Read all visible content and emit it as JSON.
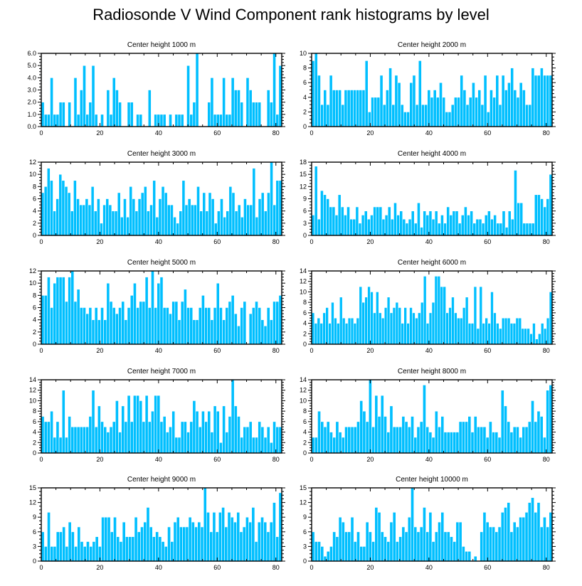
{
  "title": "Radiosonde V Wind Component rank histograms by level",
  "colors": {
    "bar": "#00BFFF",
    "bar_edge": "#ffffff",
    "axis": "#000000"
  },
  "chart_data": [
    {
      "type": "bar",
      "title": "Center height 1000 m",
      "xlim": [
        0,
        82
      ],
      "ylim": [
        0,
        6
      ],
      "xticks": [
        0,
        20,
        40,
        60,
        80
      ],
      "yticks": [
        "0.0",
        "1.0",
        "2.0",
        "3.0",
        "4.0",
        "5.0",
        "6.0"
      ],
      "ytick_values": [
        0,
        1,
        2,
        3,
        4,
        5,
        6
      ],
      "values": [
        2,
        1,
        1,
        4,
        1,
        1,
        2,
        2,
        0,
        2,
        0,
        4,
        1,
        3,
        5,
        1,
        2,
        5,
        1,
        0,
        1,
        0,
        3,
        1,
        4,
        3,
        2,
        0,
        0,
        2,
        2,
        0,
        1,
        1,
        0,
        0,
        3,
        0,
        1,
        1,
        1,
        1,
        0,
        1,
        0,
        1,
        1,
        1,
        0,
        5,
        1,
        2,
        6,
        0,
        0,
        0,
        2,
        4,
        1,
        1,
        1,
        4,
        1,
        1,
        4,
        3,
        3,
        2,
        0,
        4,
        3,
        2,
        2,
        2,
        0,
        0,
        3,
        2,
        6,
        1,
        5
      ]
    },
    {
      "type": "bar",
      "title": "Center height 2000 m",
      "xlim": [
        0,
        82
      ],
      "ylim": [
        0,
        10
      ],
      "xticks": [
        0,
        20,
        40,
        60,
        80
      ],
      "yticks": [
        "0",
        "2",
        "4",
        "6",
        "8",
        "10"
      ],
      "ytick_values": [
        0,
        2,
        4,
        6,
        8,
        10
      ],
      "values": [
        9,
        10,
        7,
        3,
        5,
        3,
        7,
        5,
        5,
        5,
        3,
        5,
        5,
        5,
        5,
        5,
        5,
        5,
        9,
        2,
        4,
        4,
        4,
        7,
        3,
        5,
        8,
        3,
        7,
        6,
        3,
        2,
        2,
        6,
        7,
        3,
        9,
        3,
        3,
        5,
        4,
        5,
        4,
        6,
        4,
        2,
        2,
        3,
        4,
        4,
        7,
        5,
        3,
        4,
        6,
        4,
        5,
        3,
        7,
        2,
        5,
        4,
        7,
        3,
        7,
        5,
        6,
        8,
        5,
        4,
        6,
        5,
        3,
        3,
        8,
        7,
        7,
        8,
        7,
        7,
        7
      ]
    },
    {
      "type": "bar",
      "title": "Center height 3000 m",
      "xlim": [
        0,
        82
      ],
      "ylim": [
        0,
        12
      ],
      "xticks": [
        0,
        20,
        40,
        60,
        80
      ],
      "yticks": [
        "0",
        "2",
        "4",
        "6",
        "8",
        "10",
        "12"
      ],
      "ytick_values": [
        0,
        2,
        4,
        6,
        8,
        10,
        12
      ],
      "values": [
        7,
        8,
        11,
        9,
        4,
        6,
        10,
        9,
        8,
        7,
        4,
        9,
        6,
        5,
        5,
        6,
        5,
        8,
        4,
        6,
        2,
        5,
        6,
        5,
        4,
        4,
        7,
        3,
        6,
        3,
        8,
        6,
        4,
        6,
        7,
        8,
        4,
        5,
        9,
        3,
        6,
        8,
        7,
        5,
        5,
        3,
        2,
        4,
        9,
        5,
        6,
        5,
        5,
        8,
        4,
        7,
        4,
        7,
        6,
        2,
        4,
        6,
        3,
        4,
        8,
        7,
        4,
        5,
        3,
        6,
        5,
        5,
        11,
        3,
        6,
        7,
        4,
        7,
        12,
        5,
        9,
        9
      ]
    },
    {
      "type": "bar",
      "title": "Center height 4000 m",
      "xlim": [
        0,
        82
      ],
      "ylim": [
        0,
        18
      ],
      "xticks": [
        0,
        20,
        40,
        60,
        80
      ],
      "yticks": [
        "0",
        "3",
        "6",
        "9",
        "12",
        "15",
        "18"
      ],
      "ytick_values": [
        0,
        3,
        6,
        9,
        12,
        15,
        18
      ],
      "values": [
        5,
        17,
        4,
        11,
        10,
        9,
        7,
        7,
        5,
        10,
        7,
        5,
        7,
        4,
        4,
        7,
        3,
        5,
        6,
        4,
        5,
        7,
        7,
        7,
        4,
        5,
        7,
        4,
        8,
        5,
        6,
        4,
        3,
        4,
        6,
        3,
        8,
        2,
        6,
        5,
        6,
        4,
        6,
        3,
        5,
        3,
        7,
        5,
        6,
        6,
        3,
        5,
        7,
        5,
        6,
        3,
        4,
        4,
        3,
        5,
        6,
        4,
        5,
        3,
        3,
        6,
        2,
        6,
        4,
        16,
        8,
        8,
        3,
        3,
        3,
        3,
        10,
        10,
        9,
        7,
        9,
        15
      ]
    },
    {
      "type": "bar",
      "title": "Center height 5000 m",
      "xlim": [
        0,
        82
      ],
      "ylim": [
        0,
        12
      ],
      "xticks": [
        0,
        20,
        40,
        60,
        80
      ],
      "yticks": [
        "0",
        "2",
        "4",
        "6",
        "8",
        "10",
        "12"
      ],
      "ytick_values": [
        0,
        2,
        4,
        6,
        8,
        10,
        12
      ],
      "values": [
        8,
        8,
        11,
        6,
        10,
        11,
        11,
        11,
        7,
        11,
        12,
        7,
        9,
        6,
        6,
        5,
        6,
        4,
        6,
        4,
        6,
        4,
        10,
        7,
        6,
        5,
        6,
        7,
        4,
        6,
        8,
        10,
        6,
        7,
        7,
        11,
        6,
        12,
        6,
        10,
        11,
        6,
        6,
        5,
        7,
        7,
        4,
        7,
        9,
        6,
        6,
        4,
        4,
        6,
        8,
        6,
        6,
        4,
        6,
        10,
        6,
        4,
        6,
        7,
        8,
        5,
        3,
        6,
        7,
        0,
        5,
        6,
        7,
        6,
        4,
        3,
        6,
        4,
        7,
        7,
        8
      ]
    },
    {
      "type": "bar",
      "title": "Center height 6000 m",
      "xlim": [
        0,
        82
      ],
      "ylim": [
        0,
        14
      ],
      "xticks": [
        0,
        20,
        40,
        60,
        80
      ],
      "yticks": [
        "0",
        "2",
        "4",
        "6",
        "8",
        "10",
        "12",
        "14"
      ],
      "ytick_values": [
        0,
        2,
        4,
        6,
        8,
        10,
        12,
        14
      ],
      "values": [
        6,
        4,
        5,
        4,
        6,
        7,
        4,
        8,
        5,
        4,
        9,
        5,
        4,
        5,
        5,
        4,
        5,
        11,
        8,
        9,
        11,
        10,
        6,
        10,
        6,
        5,
        7,
        9,
        6,
        7,
        8,
        7,
        4,
        7,
        4,
        7,
        6,
        5,
        6,
        8,
        13,
        4,
        6,
        8,
        13,
        13,
        11,
        11,
        6,
        7,
        9,
        6,
        5,
        5,
        7,
        9,
        4,
        4,
        11,
        3,
        11,
        4,
        5,
        4,
        10,
        6,
        4,
        3,
        5,
        5,
        5,
        4,
        4,
        5,
        5,
        3,
        3,
        3,
        2,
        4,
        1,
        2,
        4,
        3,
        5,
        10
      ]
    },
    {
      "type": "bar",
      "title": "Center height 7000 m",
      "xlim": [
        0,
        82
      ],
      "ylim": [
        0,
        14
      ],
      "xticks": [
        0,
        20,
        40,
        60,
        80
      ],
      "yticks": [
        "0",
        "2",
        "4",
        "6",
        "8",
        "10",
        "12",
        "14"
      ],
      "ytick_values": [
        0,
        2,
        4,
        6,
        8,
        10,
        12,
        14
      ],
      "values": [
        7,
        6,
        6,
        8,
        3,
        6,
        3,
        12,
        3,
        7,
        5,
        5,
        5,
        5,
        5,
        5,
        7,
        12,
        5,
        9,
        6,
        5,
        4,
        5,
        6,
        10,
        4,
        9,
        6,
        11,
        6,
        11,
        11,
        10,
        6,
        11,
        6,
        8,
        11,
        11,
        6,
        7,
        4,
        5,
        8,
        3,
        3,
        6,
        6,
        4,
        6,
        10,
        8,
        5,
        8,
        6,
        8,
        4,
        9,
        8,
        2,
        9,
        4,
        7,
        14,
        9,
        7,
        3,
        5,
        5,
        6,
        3,
        3,
        6,
        5,
        3,
        5,
        2,
        6,
        5,
        5
      ]
    },
    {
      "type": "bar",
      "title": "Center height 8000 m",
      "xlim": [
        0,
        82
      ],
      "ylim": [
        0,
        14
      ],
      "xticks": [
        0,
        20,
        40,
        60,
        80
      ],
      "yticks": [
        "0",
        "2",
        "4",
        "6",
        "8",
        "10",
        "12",
        "14"
      ],
      "ytick_values": [
        0,
        2,
        4,
        6,
        8,
        10,
        12,
        14
      ],
      "values": [
        3,
        3,
        8,
        6,
        5,
        6,
        4,
        3,
        6,
        4,
        3,
        5,
        5,
        5,
        5,
        6,
        10,
        8,
        6,
        14,
        5,
        11,
        7,
        11,
        7,
        4,
        9,
        5,
        5,
        5,
        7,
        6,
        5,
        7,
        3,
        5,
        6,
        13,
        5,
        4,
        3,
        8,
        5,
        7,
        4,
        4,
        4,
        4,
        4,
        6,
        6,
        6,
        7,
        4,
        7,
        5,
        5,
        5,
        3,
        6,
        4,
        4,
        3,
        12,
        9,
        6,
        4,
        5,
        5,
        3,
        5,
        5,
        6,
        10,
        6,
        8,
        7,
        3,
        12,
        13
      ]
    },
    {
      "type": "bar",
      "title": "Center height 9000 m",
      "xlim": [
        0,
        82
      ],
      "ylim": [
        0,
        15
      ],
      "xticks": [
        0,
        20,
        40,
        60,
        80
      ],
      "yticks": [
        "0",
        "3",
        "6",
        "9",
        "12",
        "15"
      ],
      "ytick_values": [
        0,
        3,
        6,
        9,
        12,
        15
      ],
      "values": [
        6,
        3,
        10,
        3,
        3,
        6,
        6,
        7,
        3,
        8,
        6,
        3,
        7,
        4,
        3,
        4,
        3,
        4,
        5,
        3,
        9,
        9,
        9,
        6,
        9,
        5,
        4,
        8,
        5,
        5,
        5,
        9,
        6,
        7,
        8,
        11,
        7,
        5,
        6,
        5,
        4,
        3,
        7,
        4,
        8,
        9,
        7,
        7,
        7,
        9,
        8,
        7,
        8,
        7,
        15,
        10,
        6,
        10,
        6,
        10,
        11,
        7,
        10,
        9,
        8,
        10,
        6,
        7,
        9,
        8,
        11,
        4,
        8,
        9,
        8,
        6,
        8,
        12,
        5,
        14
      ]
    },
    {
      "type": "bar",
      "title": "Center height 10000 m",
      "xlim": [
        0,
        82
      ],
      "ylim": [
        0,
        15
      ],
      "xticks": [
        0,
        20,
        40,
        60,
        80
      ],
      "yticks": [
        "0",
        "3",
        "6",
        "9",
        "12",
        "15"
      ],
      "ytick_values": [
        0,
        3,
        6,
        9,
        12,
        15
      ],
      "values": [
        6,
        4,
        4,
        3,
        1,
        2,
        3,
        6,
        5,
        9,
        8,
        6,
        6,
        9,
        4,
        6,
        3,
        3,
        8,
        6,
        4,
        11,
        10,
        6,
        5,
        4,
        8,
        10,
        4,
        5,
        7,
        6,
        9,
        15,
        7,
        6,
        7,
        11,
        6,
        10,
        4,
        6,
        8,
        10,
        6,
        6,
        5,
        4,
        8,
        8,
        3,
        2,
        2,
        0,
        1,
        0,
        6,
        10,
        8,
        7,
        7,
        6,
        7,
        10,
        11,
        12,
        6,
        8,
        7,
        9,
        9,
        10,
        12,
        13,
        10,
        12,
        7,
        9,
        7,
        10
      ]
    }
  ]
}
